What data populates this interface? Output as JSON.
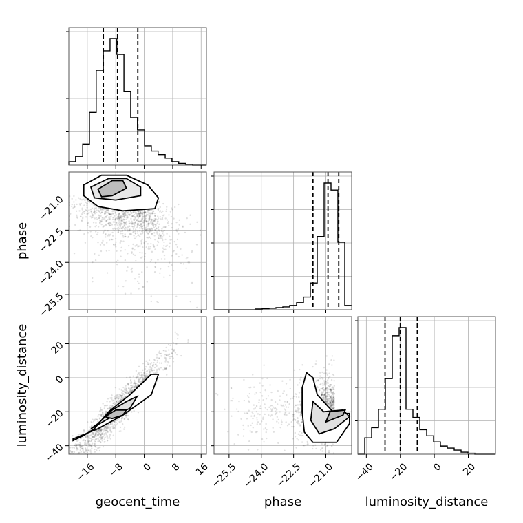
{
  "chart_data": {
    "type": "corner",
    "parameters": [
      "geocent_time",
      "phase",
      "luminosity_distance"
    ],
    "axis_labels": {
      "geocent_time": "geocent_time",
      "phase": "phase",
      "luminosity_distance": "luminosity_distance"
    },
    "ranges": {
      "geocent_time": [
        -21.2,
        17.5
      ],
      "phase": [
        -26.2,
        -19.8
      ],
      "luminosity_distance": [
        -45,
        36
      ]
    },
    "ticks": {
      "geocent_time": [
        -16,
        -8,
        0,
        8,
        16
      ],
      "phase": [
        -25.5,
        -24.0,
        -22.5,
        -21.0
      ],
      "luminosity_distance": [
        -40,
        -20,
        0,
        20
      ]
    },
    "tick_labels": {
      "geocent_time": [
        "−16",
        "−8",
        "0",
        "8",
        "16"
      ],
      "phase": [
        "−25.5",
        "−24.0",
        "−22.5",
        "−21.0"
      ],
      "luminosity_distance": [
        "−40",
        "−20",
        "0",
        "20"
      ]
    },
    "quantiles": {
      "geocent_time": [
        -11.5,
        -7.5,
        -1.8
      ],
      "phase": [
        -21.6,
        -20.9,
        -20.4
      ],
      "luminosity_distance": [
        -29,
        -20,
        -10
      ]
    },
    "histograms": {
      "geocent_time": {
        "edges": [
          -21.2,
          -19.3,
          -17.3,
          -15.4,
          -13.5,
          -11.5,
          -9.6,
          -7.7,
          -5.7,
          -3.8,
          -1.9,
          0.1,
          2.0,
          3.9,
          5.9,
          7.8,
          9.7,
          11.6,
          13.6,
          15.5,
          17.4
        ],
        "counts": [
          2,
          5,
          12,
          30,
          54,
          65,
          72,
          63,
          42,
          27,
          20,
          11,
          8,
          6,
          4,
          2,
          1,
          0.5,
          0,
          0
        ]
      },
      "phase": {
        "edges": [
          -26.2,
          -25.9,
          -25.56,
          -25.24,
          -24.92,
          -24.6,
          -24.28,
          -23.96,
          -23.64,
          -23.32,
          -23.0,
          -22.68,
          -22.36,
          -22.04,
          -21.72,
          -21.4,
          -21.08,
          -20.76,
          -20.44,
          -20.12,
          -19.8
        ],
        "counts": [
          0,
          0,
          0,
          0,
          0,
          0,
          0.5,
          0.8,
          1,
          1.5,
          2,
          3,
          5,
          9,
          19,
          52,
          90,
          85,
          48,
          3
        ]
      },
      "luminosity_distance": {
        "edges": [
          -45,
          -40.95,
          -36.9,
          -32.85,
          -28.8,
          -24.75,
          -20.7,
          -16.65,
          -12.6,
          -8.55,
          -4.5,
          -0.45,
          3.6,
          7.65,
          11.7,
          15.75,
          19.8,
          23.85,
          27.9,
          31.95,
          36.0
        ],
        "counts": [
          0,
          8,
          13,
          22,
          37,
          58,
          62,
          22,
          18,
          12,
          9,
          6,
          4,
          3,
          2,
          1,
          0.5,
          0,
          0,
          0
        ]
      }
    },
    "grid": true
  }
}
